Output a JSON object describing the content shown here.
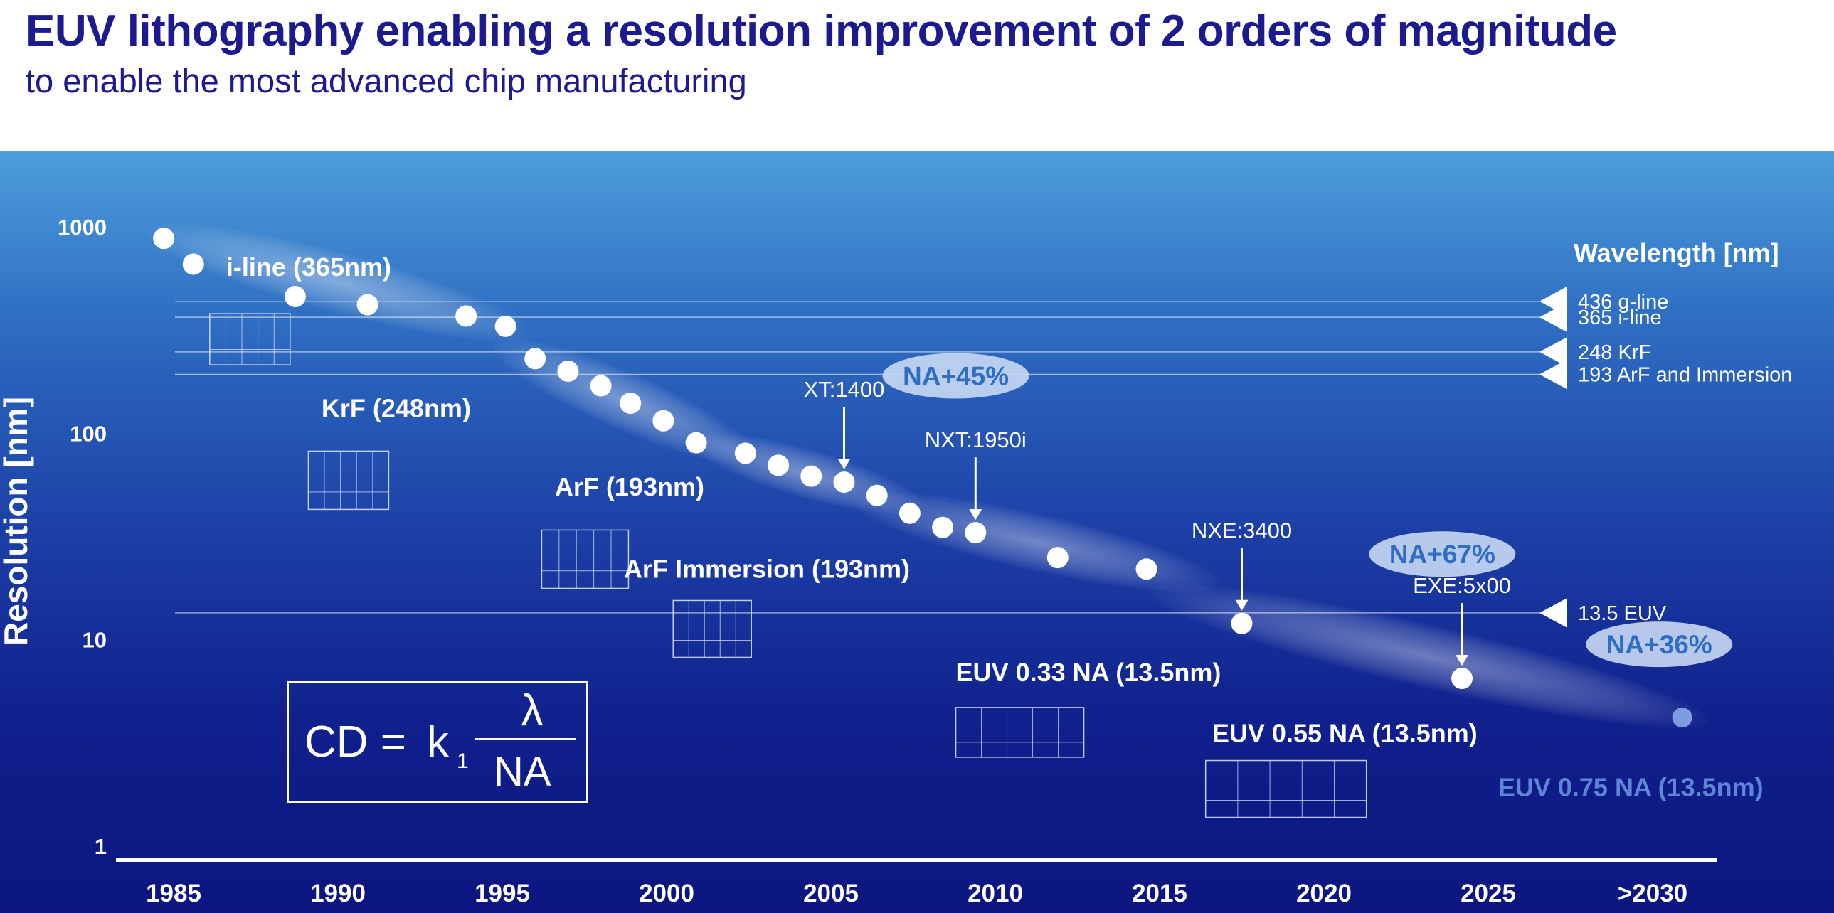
{
  "header": {
    "title": "EUV lithography enabling a resolution improvement of 2 orders of magnitude",
    "subtitle": "to enable the most advanced chip manufacturing"
  },
  "formula": {
    "lhs": "CD =",
    "k": "k",
    "k_subscript": "1",
    "numerator": "λ",
    "denominator": "NA"
  },
  "colors": {
    "title": "#1d1a8f",
    "panel_top": "#4d9ddb",
    "panel_bottom": "#0c1580",
    "point": "#ffffff",
    "future_point": "#7f9be0",
    "na_badge": "#c9d9f4",
    "na_badge_text": "#2f6ec2",
    "future_label": "#5f86d6"
  },
  "chart_data": {
    "type": "scatter",
    "title": "",
    "ylabel": "Resolution [nm]",
    "xlabel": "",
    "y_scale": "log",
    "ylim": [
      1,
      1000
    ],
    "y_ticks": [
      "1",
      "10",
      "100",
      "1000"
    ],
    "xlim": [
      1985,
      2031
    ],
    "x_ticks": [
      "1985",
      "1990",
      "1995",
      "2000",
      "2005",
      "2010",
      "2015",
      "2020",
      "2025",
      ">2030"
    ],
    "grid": false,
    "series": [
      {
        "points": [
          [
            1984.7,
            880
          ],
          [
            1985.6,
            660
          ],
          [
            1988.7,
            460
          ],
          [
            1990.9,
            420
          ],
          [
            1993.9,
            370
          ],
          [
            1995.1,
            330
          ],
          [
            1996.0,
            230
          ],
          [
            1997.0,
            200
          ],
          [
            1998.0,
            170
          ],
          [
            1998.9,
            140
          ],
          [
            1999.9,
            115
          ],
          [
            2000.9,
            90
          ],
          [
            2002.4,
            80
          ],
          [
            2003.4,
            70
          ],
          [
            2004.4,
            62
          ],
          [
            2005.4,
            58
          ],
          [
            2006.4,
            50
          ],
          [
            2007.4,
            41
          ],
          [
            2008.4,
            35
          ],
          [
            2009.4,
            33
          ],
          [
            2011.9,
            25
          ],
          [
            2014.6,
            22
          ],
          [
            2017.5,
            12
          ],
          [
            2024.2,
            6.5
          ]
        ]
      },
      {
        "points": [
          [
            2030.9,
            4.2
          ]
        ]
      }
    ],
    "wavelength_panel": {
      "title": "Wavelength [nm]",
      "lines": [
        {
          "label": "436 g-line",
          "value": 436
        },
        {
          "label": "365 i-line",
          "value": 365
        },
        {
          "label": "248 KrF",
          "value": 248
        },
        {
          "label": "193 ArF and Immersion",
          "value": 193
        },
        {
          "label": "13.5 EUV",
          "value": 13.5
        }
      ]
    },
    "technology_labels": [
      "i-line (365nm)",
      "KrF (248nm)",
      "ArF (193nm)",
      "ArF Immersion (193nm)",
      "EUV 0.33 NA (13.5nm)",
      "EUV 0.55 NA (13.5nm)",
      "EUV 0.75 NA (13.5nm)"
    ],
    "system_annotations": [
      {
        "label": "XT:1400",
        "year": 2005.4,
        "value": 58
      },
      {
        "label": "NXT:1950i",
        "year": 2009.4,
        "value": 33
      },
      {
        "label": "NXE:3400",
        "year": 2017.5,
        "value": 12
      },
      {
        "label": "EXE:5x00",
        "year": 2024.2,
        "value": 6.5
      }
    ],
    "na_badges": [
      "NA+45%",
      "NA+67%",
      "NA+36%"
    ]
  }
}
